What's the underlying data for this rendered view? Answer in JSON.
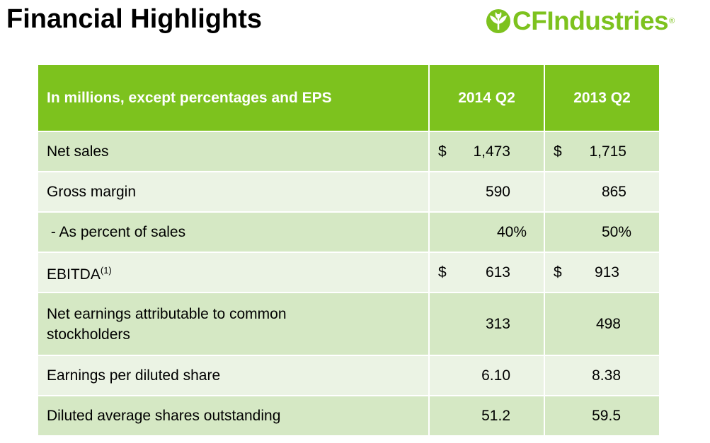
{
  "header": {
    "title": "Financial Highlights",
    "logo_text": "CFIndustries",
    "logo_registered": "®"
  },
  "colors": {
    "brand_green": "#7dc21e",
    "row_dark": "#d5e8c4",
    "row_light": "#ebf3e4"
  },
  "table": {
    "header_label": "In millions, except percentages and EPS",
    "columns": [
      "2014 Q2",
      "2013 Q2"
    ],
    "rows": [
      {
        "label": "Net sales",
        "footnote": "",
        "v2014": "1,473",
        "v2013": "1,715",
        "dollar2014": "$",
        "dollar2013": "$"
      },
      {
        "label": "Gross margin",
        "footnote": "",
        "v2014": "590",
        "v2013": "865"
      },
      {
        "label": " - As percent of sales",
        "footnote": "",
        "v2014": "40%",
        "v2013": "50%"
      },
      {
        "label": "EBITDA",
        "footnote": "(1)",
        "v2014": "613",
        "v2013": "913",
        "dollar2014": "$",
        "dollar2013": "$"
      },
      {
        "label": "Net earnings attributable to common stockholders",
        "footnote": "",
        "v2014": "313",
        "v2013": "498"
      },
      {
        "label": "Earnings per diluted share",
        "footnote": "",
        "v2014": "6.10",
        "v2013": "8.38"
      },
      {
        "label": "Diluted average shares outstanding",
        "footnote": "",
        "v2014": "51.2",
        "v2013": "59.5"
      }
    ]
  }
}
